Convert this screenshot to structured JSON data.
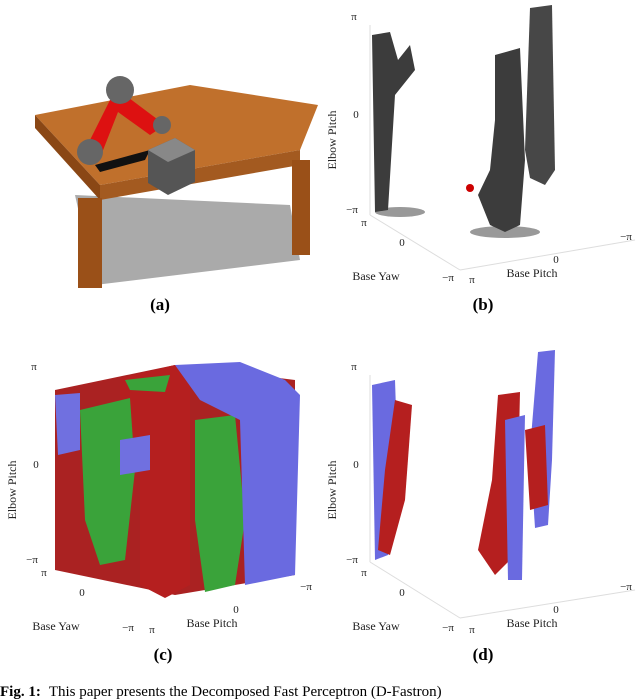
{
  "panels": [
    {
      "label": "(a)"
    },
    {
      "label": "(b)",
      "axes": {
        "z_label": "Elbow Pitch",
        "x_label": "Base Yaw",
        "y_label": "Base Pitch",
        "z_ticks": [
          "π",
          "0",
          "−π"
        ],
        "x_ticks": [
          "π",
          "0",
          "−π"
        ],
        "y_ticks": [
          "π",
          "0",
          "−π"
        ]
      }
    },
    {
      "label": "(c)",
      "axes": {
        "z_label": "Elbow Pitch",
        "x_label": "Base Yaw",
        "y_label": "Base Pitch",
        "z_ticks": [
          "π",
          "0",
          "−π"
        ],
        "x_ticks": [
          "π",
          "0",
          "−π"
        ],
        "y_ticks": [
          "π",
          "0",
          "−π"
        ]
      }
    },
    {
      "label": "(d)",
      "axes": {
        "z_label": "Elbow Pitch",
        "x_label": "Base Yaw",
        "y_label": "Base Pitch",
        "z_ticks": [
          "π",
          "0",
          "−π"
        ],
        "x_ticks": [
          "π",
          "0",
          "−π"
        ],
        "y_ticks": [
          "π",
          "0",
          "−π"
        ]
      }
    }
  ],
  "caption": {
    "prefix": "Fig. 1:",
    "text": "This paper presents the Decomposed Fast Perceptron (D-Fastron)"
  }
}
